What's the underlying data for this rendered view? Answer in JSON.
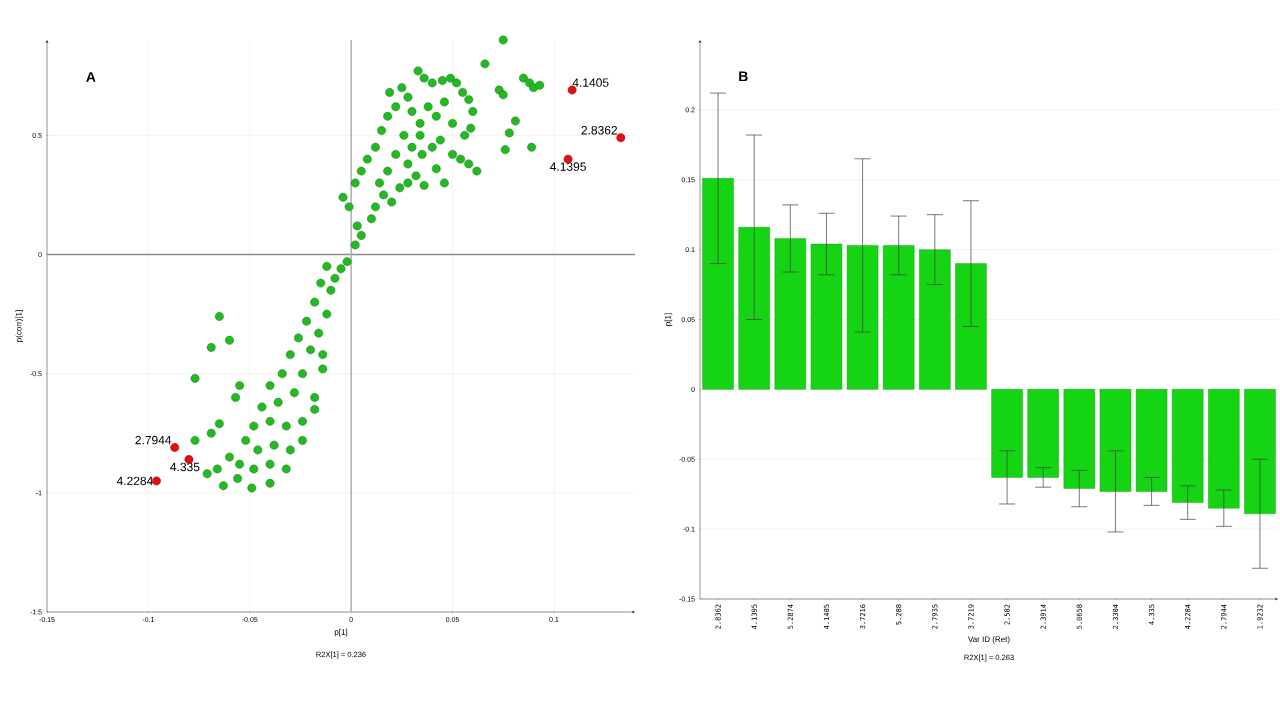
{
  "chart_data": [
    {
      "type": "scatter",
      "title": "A",
      "xlabel": "p[1]",
      "ylabel": "p(corr)[1]",
      "annotations": [
        "R2X[1] = 0.236",
        {
          "text": "4.1405",
          "x": 0.109,
          "y": 0.69
        },
        {
          "text": "2.8362",
          "x": 0.133,
          "y": 0.49
        },
        {
          "text": "4.1395",
          "x": 0.107,
          "y": 0.4
        },
        {
          "text": "2.7944",
          "x": -0.087,
          "y": -0.81
        },
        {
          "text": "4.335",
          "x": -0.08,
          "y": -0.86
        },
        {
          "text": "4.2284",
          "x": -0.096,
          "y": -0.95
        }
      ],
      "xlim": [
        -0.15,
        0.14
      ],
      "ylim": [
        -1.5,
        0.9
      ],
      "xticks": [
        -0.15,
        -0.1,
        -0.05,
        0,
        0.05,
        0.1
      ],
      "yticks": [
        -1.5,
        -1,
        -0.5,
        0,
        0.5
      ],
      "grid": true,
      "ref_lines": [
        {
          "axis": "y",
          "value": 0,
          "color": "#8c8c8c"
        },
        {
          "axis": "x",
          "value": 0,
          "color": "#b4b4b4"
        }
      ],
      "series": [
        {
          "color": "#22b922",
          "x": [
            0.075,
            0.066,
            0.073,
            0.075,
            0.085,
            0.088,
            0.09,
            0.093,
            0.081,
            0.078,
            0.076,
            0.089,
            0.033,
            0.036,
            0.04,
            0.045,
            0.049,
            0.052,
            0.055,
            0.058,
            0.06,
            0.059,
            0.056,
            0.062,
            0.058,
            0.054,
            0.05,
            0.046,
            0.042,
            0.036,
            0.032,
            0.028,
            0.024,
            0.02,
            0.016,
            0.012,
            0.01,
            0.005,
            0.003,
            -0.001,
            -0.004,
            0.002,
            0.005,
            0.008,
            0.012,
            0.015,
            0.018,
            0.019,
            0.022,
            0.025,
            0.028,
            0.03,
            0.034,
            0.038,
            0.042,
            0.046,
            0.05,
            0.044,
            0.04,
            0.035,
            0.03,
            0.026,
            0.022,
            0.018,
            0.014,
            0.028,
            0.034,
            0.002,
            -0.002,
            -0.005,
            -0.008,
            -0.012,
            -0.01,
            -0.015,
            -0.018,
            -0.012,
            -0.022,
            -0.016,
            -0.026,
            -0.014,
            -0.02,
            -0.03,
            -0.014,
            -0.024,
            -0.034,
            -0.04,
            -0.018,
            -0.028,
            -0.036,
            -0.044,
            -0.018,
            -0.024,
            -0.032,
            -0.04,
            -0.048,
            -0.024,
            -0.03,
            -0.038,
            -0.046,
            -0.052,
            -0.032,
            -0.04,
            -0.048,
            -0.055,
            -0.04,
            -0.049,
            -0.056,
            -0.063,
            -0.071,
            -0.066,
            -0.06,
            -0.065,
            -0.06,
            -0.069,
            -0.077,
            -0.055,
            -0.057,
            -0.077,
            -0.065,
            -0.069
          ],
          "values": [
            0.9,
            0.8,
            0.69,
            0.67,
            0.74,
            0.72,
            0.7,
            0.71,
            0.56,
            0.51,
            0.44,
            0.45,
            0.77,
            0.74,
            0.72,
            0.73,
            0.74,
            0.72,
            0.68,
            0.65,
            0.6,
            0.53,
            0.5,
            0.35,
            0.38,
            0.4,
            0.42,
            0.3,
            0.36,
            0.29,
            0.33,
            0.3,
            0.28,
            0.22,
            0.25,
            0.2,
            0.15,
            0.08,
            0.12,
            0.2,
            0.24,
            0.3,
            0.35,
            0.4,
            0.45,
            0.52,
            0.58,
            0.68,
            0.62,
            0.7,
            0.66,
            0.6,
            0.55,
            0.62,
            0.58,
            0.64,
            0.55,
            0.48,
            0.45,
            0.42,
            0.45,
            0.5,
            0.42,
            0.35,
            0.3,
            0.38,
            0.5,
            0.04,
            -0.03,
            -0.06,
            -0.1,
            -0.05,
            -0.15,
            -0.12,
            -0.2,
            -0.25,
            -0.28,
            -0.33,
            -0.35,
            -0.42,
            -0.4,
            -0.42,
            -0.48,
            -0.5,
            -0.5,
            -0.55,
            -0.6,
            -0.58,
            -0.62,
            -0.64,
            -0.65,
            -0.7,
            -0.72,
            -0.7,
            -0.72,
            -0.78,
            -0.82,
            -0.8,
            -0.82,
            -0.78,
            -0.9,
            -0.88,
            -0.9,
            -0.88,
            -0.96,
            -0.98,
            -0.94,
            -0.97,
            -0.92,
            -0.9,
            -0.85,
            -0.26,
            -0.36,
            -0.39,
            -0.52,
            -0.55,
            -0.6,
            -0.78,
            -0.71,
            -0.75
          ]
        },
        {
          "color": "#e01010",
          "x": [
            0.109,
            0.133,
            0.107,
            -0.087,
            -0.08,
            -0.096
          ],
          "values": [
            0.69,
            0.49,
            0.4,
            -0.81,
            -0.86,
            -0.95
          ]
        }
      ]
    },
    {
      "type": "bar",
      "title": "B",
      "xlabel": "Var ID (Ret)",
      "ylabel": "p[1]",
      "annotations": [
        "R2X[1] = 0.263"
      ],
      "categories": [
        "2.8362",
        "4.1395",
        "5.2874",
        "4.1405",
        "3.7216",
        "5.288",
        "2.7935",
        "3.7219",
        "2.582",
        "2.3914",
        "5.0658",
        "2.3304",
        "4.335",
        "4.2284",
        "2.7944",
        "1.9232"
      ],
      "values": [
        0.151,
        0.116,
        0.108,
        0.104,
        0.103,
        0.103,
        0.1,
        0.09,
        -0.063,
        -0.063,
        -0.071,
        -0.073,
        -0.073,
        -0.081,
        -0.085,
        -0.089
      ],
      "errors": [
        0.061,
        0.066,
        0.024,
        0.022,
        0.062,
        0.021,
        0.025,
        0.045,
        0.019,
        0.007,
        0.013,
        0.029,
        0.01,
        0.012,
        0.013,
        0.039
      ],
      "color": "#14d414",
      "ylim": [
        -0.15,
        0.25
      ],
      "yticks": [
        -0.15,
        -0.1,
        -0.05,
        0,
        0.05,
        0.1,
        0.15,
        0.2
      ],
      "grid": "y"
    }
  ]
}
